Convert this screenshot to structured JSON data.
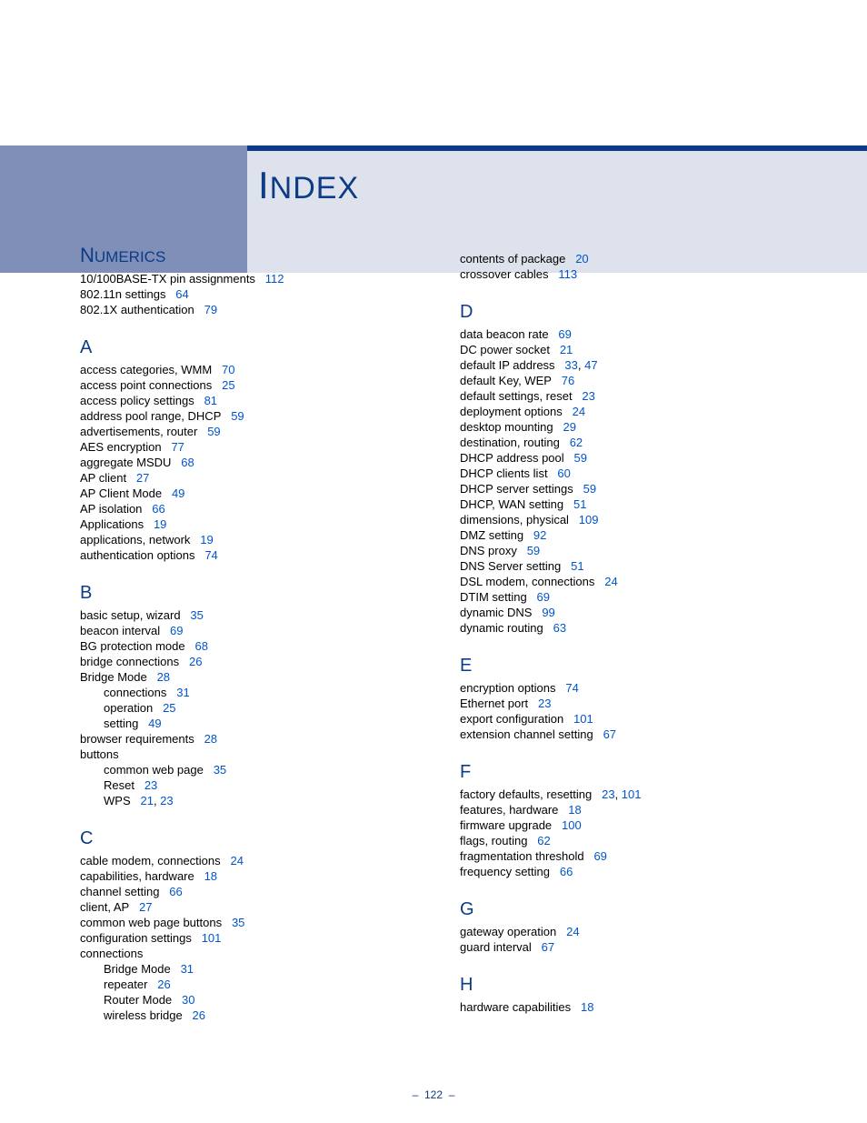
{
  "title": {
    "big1": "I",
    "rest": "NDEX"
  },
  "footer": {
    "dash1": "–",
    "num": "122",
    "dash2": "–"
  },
  "colors": {
    "link": "#0055cc",
    "heading": "#0e3b85",
    "sidebar": "#7f8fb8",
    "title_bg": "#dde2ed",
    "top_bar": "#0e3b85"
  },
  "columns": [
    {
      "sections": [
        {
          "heading_type": "numerics",
          "heading_big": "N",
          "heading": "UMERICS",
          "entries": [
            {
              "text": "10/100BASE-TX pin assignments",
              "pages": [
                "112"
              ]
            },
            {
              "text": "802.11n settings",
              "pages": [
                "64"
              ]
            },
            {
              "text": "802.1X authentication",
              "pages": [
                "79"
              ]
            }
          ]
        },
        {
          "heading": "A",
          "entries": [
            {
              "text": "access categories, WMM",
              "pages": [
                "70"
              ]
            },
            {
              "text": "access point connections",
              "pages": [
                "25"
              ]
            },
            {
              "text": "access policy settings",
              "pages": [
                "81"
              ]
            },
            {
              "text": "address pool range, DHCP",
              "pages": [
                "59"
              ]
            },
            {
              "text": "advertisements, router",
              "pages": [
                "59"
              ]
            },
            {
              "text": "AES encryption",
              "pages": [
                "77"
              ]
            },
            {
              "text": "aggregate MSDU",
              "pages": [
                "68"
              ]
            },
            {
              "text": "AP client",
              "pages": [
                "27"
              ]
            },
            {
              "text": "AP Client Mode",
              "pages": [
                "49"
              ]
            },
            {
              "text": "AP isolation",
              "pages": [
                "66"
              ]
            },
            {
              "text": "Applications",
              "pages": [
                "19"
              ]
            },
            {
              "text": "applications, network",
              "pages": [
                "19"
              ]
            },
            {
              "text": "authentication options",
              "pages": [
                "74"
              ]
            }
          ]
        },
        {
          "heading": "B",
          "entries": [
            {
              "text": "basic setup, wizard",
              "pages": [
                "35"
              ]
            },
            {
              "text": "beacon interval",
              "pages": [
                "69"
              ]
            },
            {
              "text": "BG protection mode",
              "pages": [
                "68"
              ]
            },
            {
              "text": "bridge connections",
              "pages": [
                "26"
              ]
            },
            {
              "text": "Bridge Mode",
              "pages": [
                "28"
              ]
            },
            {
              "text": "connections",
              "pages": [
                "31"
              ],
              "indent": true
            },
            {
              "text": "operation",
              "pages": [
                "25"
              ],
              "indent": true
            },
            {
              "text": "setting",
              "pages": [
                "49"
              ],
              "indent": true
            },
            {
              "text": "browser requirements",
              "pages": [
                "28"
              ]
            },
            {
              "text": "buttons",
              "pages": []
            },
            {
              "text": "common web page",
              "pages": [
                "35"
              ],
              "indent": true
            },
            {
              "text": "Reset",
              "pages": [
                "23"
              ],
              "indent": true
            },
            {
              "text": "WPS",
              "pages": [
                "21",
                "23"
              ],
              "indent": true
            }
          ]
        },
        {
          "heading": "C",
          "entries": [
            {
              "text": "cable modem, connections",
              "pages": [
                "24"
              ]
            },
            {
              "text": "capabilities, hardware",
              "pages": [
                "18"
              ]
            },
            {
              "text": "channel setting",
              "pages": [
                "66"
              ]
            },
            {
              "text": "client, AP",
              "pages": [
                "27"
              ]
            },
            {
              "text": "common web page buttons",
              "pages": [
                "35"
              ]
            },
            {
              "text": "configuration settings",
              "pages": [
                "101"
              ]
            },
            {
              "text": "connections",
              "pages": []
            },
            {
              "text": "Bridge Mode",
              "pages": [
                "31"
              ],
              "indent": true
            },
            {
              "text": "repeater",
              "pages": [
                "26"
              ],
              "indent": true
            },
            {
              "text": "Router Mode",
              "pages": [
                "30"
              ],
              "indent": true
            },
            {
              "text": "wireless bridge",
              "pages": [
                "26"
              ],
              "indent": true
            }
          ]
        }
      ]
    },
    {
      "sections": [
        {
          "heading": null,
          "entries": [
            {
              "text": "contents of package",
              "pages": [
                "20"
              ]
            },
            {
              "text": "crossover cables",
              "pages": [
                "113"
              ]
            }
          ]
        },
        {
          "heading": "D",
          "entries": [
            {
              "text": "data beacon rate",
              "pages": [
                "69"
              ]
            },
            {
              "text": "DC power socket",
              "pages": [
                "21"
              ]
            },
            {
              "text": "default IP address",
              "pages": [
                "33",
                "47"
              ]
            },
            {
              "text": "default Key, WEP",
              "pages": [
                "76"
              ]
            },
            {
              "text": "default settings, reset",
              "pages": [
                "23"
              ]
            },
            {
              "text": "deployment options",
              "pages": [
                "24"
              ]
            },
            {
              "text": "desktop mounting",
              "pages": [
                "29"
              ]
            },
            {
              "text": "destination, routing",
              "pages": [
                "62"
              ]
            },
            {
              "text": "DHCP address pool",
              "pages": [
                "59"
              ]
            },
            {
              "text": "DHCP clients list",
              "pages": [
                "60"
              ]
            },
            {
              "text": "DHCP server settings",
              "pages": [
                "59"
              ]
            },
            {
              "text": "DHCP, WAN setting",
              "pages": [
                "51"
              ]
            },
            {
              "text": "dimensions, physical",
              "pages": [
                "109"
              ]
            },
            {
              "text": "DMZ setting",
              "pages": [
                "92"
              ]
            },
            {
              "text": "DNS proxy",
              "pages": [
                "59"
              ]
            },
            {
              "text": "DNS Server setting",
              "pages": [
                "51"
              ]
            },
            {
              "text": "DSL modem, connections",
              "pages": [
                "24"
              ]
            },
            {
              "text": "DTIM setting",
              "pages": [
                "69"
              ]
            },
            {
              "text": "dynamic DNS",
              "pages": [
                "99"
              ]
            },
            {
              "text": "dynamic routing",
              "pages": [
                "63"
              ]
            }
          ]
        },
        {
          "heading": "E",
          "entries": [
            {
              "text": "encryption options",
              "pages": [
                "74"
              ]
            },
            {
              "text": "Ethernet port",
              "pages": [
                "23"
              ]
            },
            {
              "text": "export configuration",
              "pages": [
                "101"
              ]
            },
            {
              "text": "extension channel setting",
              "pages": [
                "67"
              ]
            }
          ]
        },
        {
          "heading": "F",
          "entries": [
            {
              "text": "factory defaults, resetting",
              "pages": [
                "23",
                "101"
              ]
            },
            {
              "text": "features, hardware",
              "pages": [
                "18"
              ]
            },
            {
              "text": "firmware upgrade",
              "pages": [
                "100"
              ]
            },
            {
              "text": "flags, routing",
              "pages": [
                "62"
              ]
            },
            {
              "text": "fragmentation threshold",
              "pages": [
                "69"
              ]
            },
            {
              "text": "frequency setting",
              "pages": [
                "66"
              ]
            }
          ]
        },
        {
          "heading": "G",
          "entries": [
            {
              "text": "gateway operation",
              "pages": [
                "24"
              ]
            },
            {
              "text": "guard interval",
              "pages": [
                "67"
              ]
            }
          ]
        },
        {
          "heading": "H",
          "entries": [
            {
              "text": "hardware capabilities",
              "pages": [
                "18"
              ]
            }
          ]
        }
      ]
    }
  ]
}
